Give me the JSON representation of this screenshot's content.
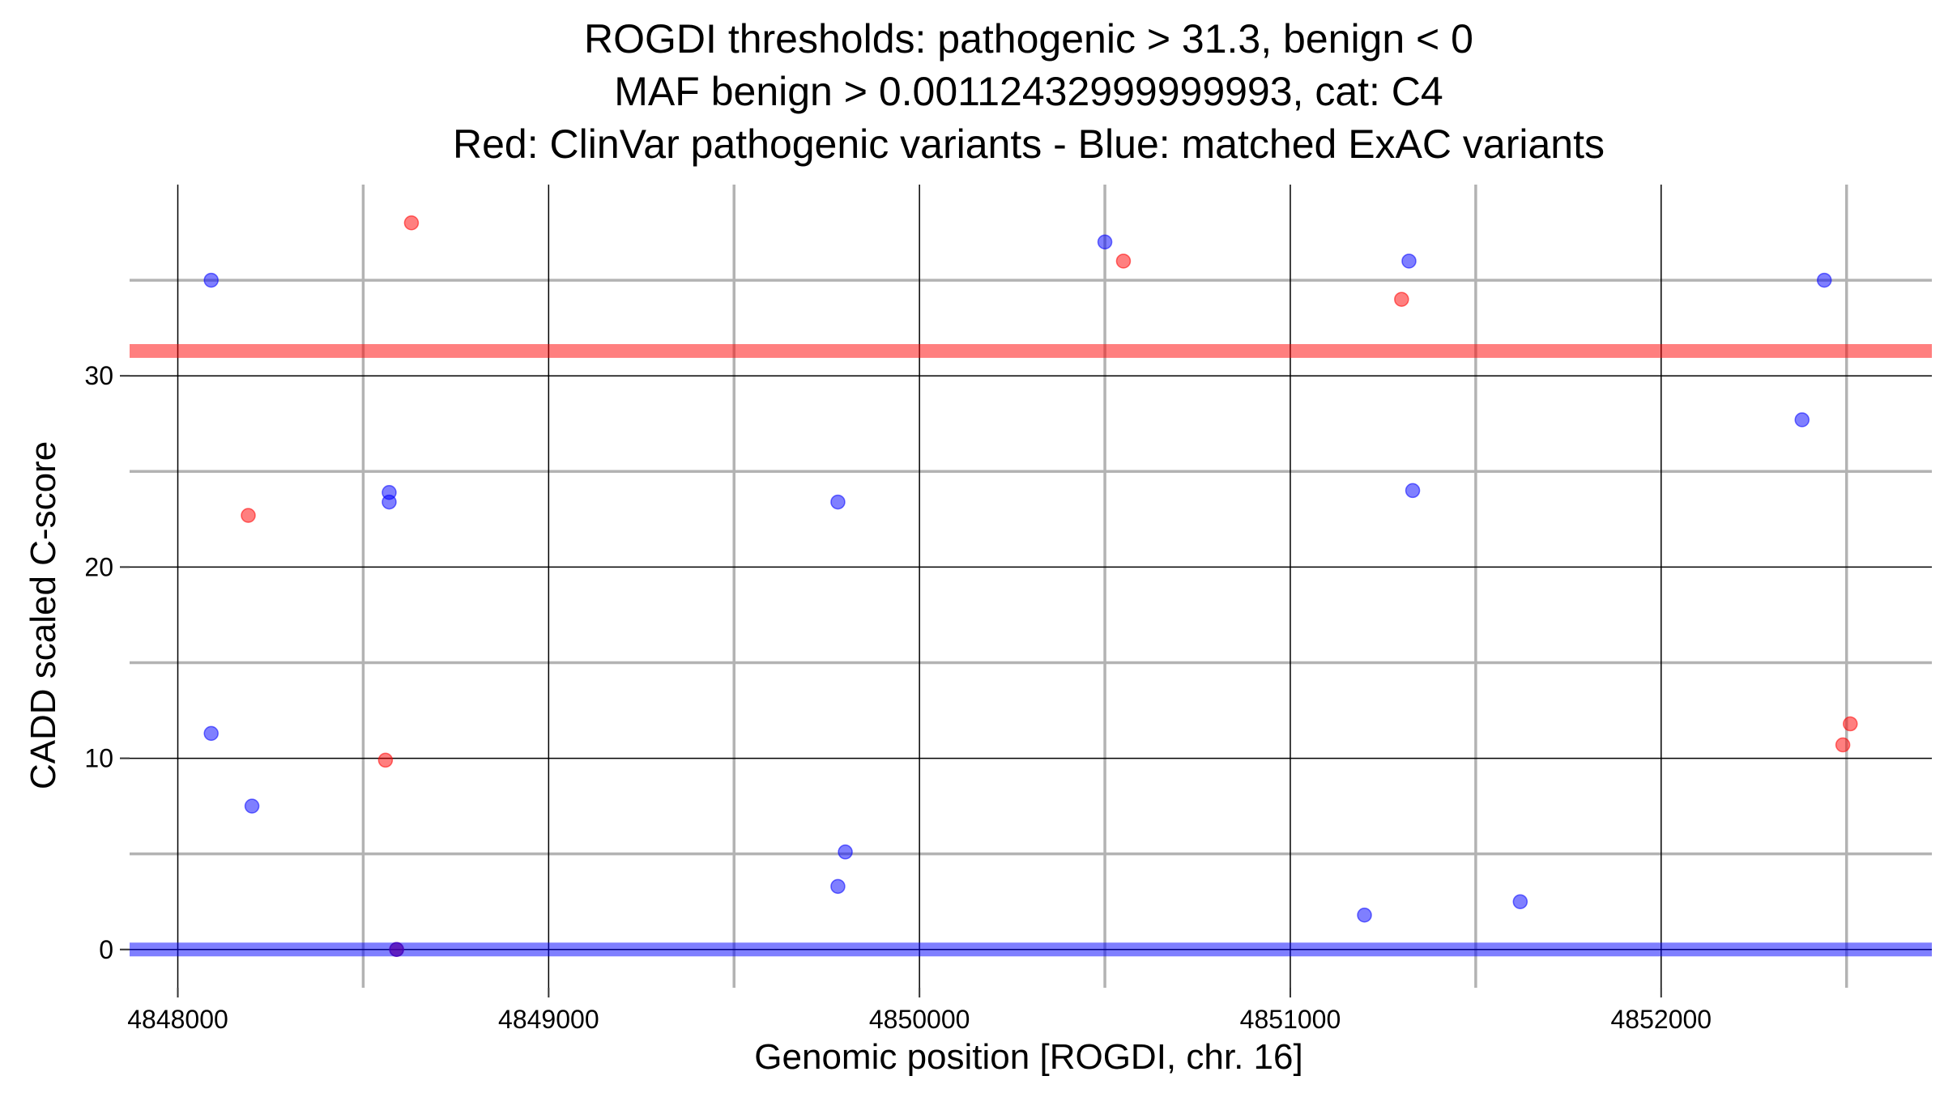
{
  "chart_data": {
    "type": "scatter",
    "title_lines": [
      "ROGDI thresholds: pathogenic > 31.3, benign < 0",
      "MAF benign > 0.00112432999999993, cat: C4",
      "Red: ClinVar pathogenic variants - Blue: matched ExAC variants"
    ],
    "xlabel": "Genomic position [ROGDI, chr. 16]",
    "ylabel": "CADD scaled C-score",
    "xlim": [
      4847870,
      4852730
    ],
    "ylim": [
      -2,
      40
    ],
    "x_ticks": [
      4848000,
      4849000,
      4850000,
      4851000,
      4852000
    ],
    "x_tick_labels": [
      "4848000",
      "4849000",
      "4850000",
      "4851000",
      "4852000"
    ],
    "y_ticks": [
      0,
      10,
      20,
      30
    ],
    "y_tick_labels": [
      "0",
      "10",
      "20",
      "30"
    ],
    "grid": true,
    "legend": "none",
    "thresholds": {
      "pathogenic": 31.3,
      "benign": 0,
      "pathogenic_color": "#ff0000",
      "benign_color": "#0000ff"
    },
    "series": [
      {
        "color": "#ff0000",
        "points": [
          {
            "x": 4848630,
            "y": 38
          },
          {
            "x": 4848190,
            "y": 22.7
          },
          {
            "x": 4848560,
            "y": 9.9
          },
          {
            "x": 4848590,
            "y": 0
          },
          {
            "x": 4850550,
            "y": 36
          },
          {
            "x": 4851300,
            "y": 34
          },
          {
            "x": 4852510,
            "y": 11.8
          },
          {
            "x": 4852490,
            "y": 10.7
          }
        ]
      },
      {
        "color": "#0000ff",
        "points": [
          {
            "x": 4848090,
            "y": 35
          },
          {
            "x": 4848090,
            "y": 11.3
          },
          {
            "x": 4848200,
            "y": 7.5
          },
          {
            "x": 4848570,
            "y": 23.9
          },
          {
            "x": 4848570,
            "y": 23.4
          },
          {
            "x": 4848590,
            "y": 0
          },
          {
            "x": 4849780,
            "y": 23.4
          },
          {
            "x": 4849800,
            "y": 5.1
          },
          {
            "x": 4849780,
            "y": 3.3
          },
          {
            "x": 4850500,
            "y": 37
          },
          {
            "x": 4851320,
            "y": 36
          },
          {
            "x": 4851330,
            "y": 24
          },
          {
            "x": 4851200,
            "y": 1.8
          },
          {
            "x": 4851620,
            "y": 2.5
          },
          {
            "x": 4852440,
            "y": 35
          },
          {
            "x": 4852380,
            "y": 27.7
          }
        ]
      }
    ]
  }
}
